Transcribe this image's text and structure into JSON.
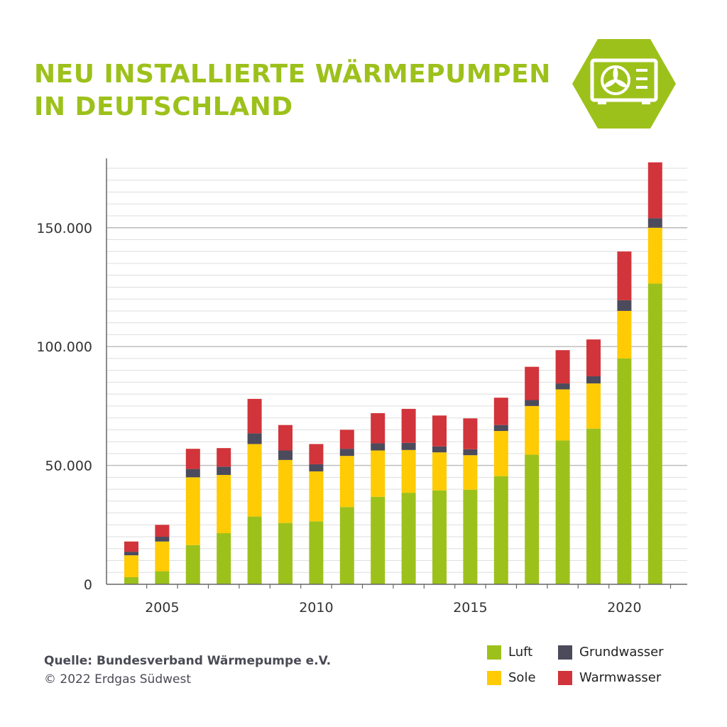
{
  "header": {
    "title_line1": "NEU INSTALLIERTE WÄRMEPUMPEN",
    "title_line2": "IN DEUTSCHLAND",
    "badge_icon": "heat-pump-icon"
  },
  "colors": {
    "Luft": "#9dc11b",
    "Sole": "#fecb04",
    "Grundwasser": "#4b4b5c",
    "Warmwasser": "#d1343a",
    "title": "#9dc11b",
    "badge_bg": "#9dc11b"
  },
  "chart_data": {
    "type": "bar",
    "stacked": true,
    "title": "NEU INSTALLIERTE WÄRMEPUMPEN IN DEUTSCHLAND",
    "xlabel": "",
    "ylabel": "",
    "ylim": [
      0,
      178000
    ],
    "yticks": [
      0,
      50000,
      100000,
      150000
    ],
    "ytick_labels": [
      "0",
      "50.000",
      "100.000",
      "150.000"
    ],
    "xtick_labels": [
      "2005",
      "2010",
      "2015",
      "2020"
    ],
    "grid": true,
    "legend_position": "bottom-right",
    "categories": [
      2004,
      2005,
      2006,
      2007,
      2008,
      2009,
      2010,
      2011,
      2012,
      2013,
      2014,
      2015,
      2016,
      2017,
      2018,
      2019,
      2020,
      2021
    ],
    "series": [
      {
        "name": "Luft",
        "values": [
          3000,
          5500,
          16500,
          21500,
          28500,
          25800,
          26500,
          32500,
          36800,
          38500,
          39500,
          39800,
          45500,
          54500,
          60500,
          65500,
          95000,
          126500
        ]
      },
      {
        "name": "Sole",
        "values": [
          9200,
          12500,
          28500,
          24500,
          30500,
          26500,
          21000,
          21500,
          19500,
          18000,
          16000,
          14500,
          19000,
          20500,
          21500,
          19000,
          20000,
          23500
        ]
      },
      {
        "name": "Grundwasser",
        "values": [
          1500,
          2000,
          3500,
          3500,
          4500,
          4000,
          3000,
          3000,
          3000,
          3000,
          2500,
          2500,
          2500,
          2500,
          2500,
          3000,
          4500,
          4000
        ]
      },
      {
        "name": "Warmwasser",
        "values": [
          4300,
          5000,
          8500,
          7800,
          14500,
          10700,
          8500,
          8000,
          12700,
          14300,
          13000,
          13000,
          11500,
          14000,
          14000,
          15500,
          20500,
          23500
        ]
      }
    ]
  },
  "footer": {
    "source": "Quelle: Bundesverband Wärmepumpe e.V.",
    "copyright": "© 2022 Erdgas Südwest"
  }
}
